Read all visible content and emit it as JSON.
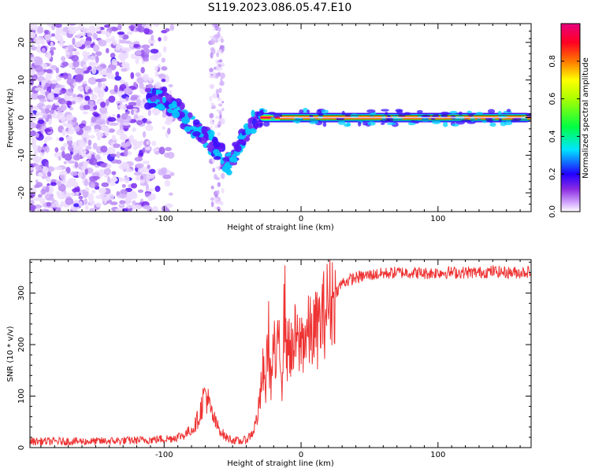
{
  "title": "S119.2023.086.05.47.E10",
  "colors": {
    "snr_line": "#ee3333",
    "band_center": "#e8e8e8",
    "band_edge": "#222222"
  },
  "chart_data": [
    {
      "type": "heatmap",
      "xlabel": "Height of straight line (km)",
      "ylabel": "Frequency (Hz)",
      "xlim": [
        -198,
        168
      ],
      "ylim": [
        -25,
        25
      ],
      "xticks": [
        -100,
        0,
        100
      ],
      "xtick_labels": [
        "-100",
        "0",
        "100"
      ],
      "yticks": [
        -20,
        -10,
        0,
        10,
        20
      ],
      "ytick_labels": [
        "-20",
        "-10",
        "0",
        "10",
        "20"
      ],
      "colorscale": "rainbow (white-purple-blue-cyan-green-yellow-red-magenta)",
      "features": {
        "noise_region_x": [
          -198,
          -100
        ],
        "descending_trace": [
          {
            "x": -100,
            "y": 5
          },
          {
            "x": -90,
            "y": 2
          },
          {
            "x": -80,
            "y": -2
          },
          {
            "x": -70,
            "y": -5
          },
          {
            "x": -60,
            "y": -9
          },
          {
            "x": -52,
            "y": -13
          },
          {
            "x": -45,
            "y": -7
          },
          {
            "x": -38,
            "y": -2
          },
          {
            "x": -30,
            "y": 0
          }
        ],
        "constant_line_from_x": -30,
        "constant_line_freq": 0
      },
      "colorbar": {
        "label": "Normalized spectral amplitude",
        "range": [
          0,
          1
        ],
        "ticks": [
          0.0,
          0.2,
          0.4,
          0.6,
          0.8
        ],
        "tick_labels": [
          "0.0",
          "0.2",
          "0.4",
          "0.6",
          "0.8"
        ]
      }
    },
    {
      "type": "line",
      "xlabel": "Height of straight line (km)",
      "ylabel": "SNR (10 * v/v)",
      "xlim": [
        -198,
        168
      ],
      "ylim": [
        0,
        365
      ],
      "xticks": [
        -100,
        0,
        100
      ],
      "xtick_labels": [
        "-100",
        "0",
        "100"
      ],
      "yticks": [
        0,
        100,
        200,
        300
      ],
      "ytick_labels": [
        "0",
        "100",
        "200",
        "300"
      ],
      "series": [
        {
          "x": [
            -198,
            -150,
            -110,
            -95,
            -85,
            -78,
            -74,
            -70,
            -66,
            -62,
            -58,
            -55,
            -50,
            -45,
            -40,
            -35,
            -32,
            -30,
            -28,
            -26,
            -24,
            -22,
            -20,
            -18,
            -16,
            -14,
            -12,
            -10,
            -8,
            -6,
            -4,
            -2,
            0,
            5,
            10,
            15,
            18,
            20,
            25,
            30,
            40,
            50,
            60,
            70,
            80,
            90,
            100,
            110,
            120,
            130,
            140,
            150,
            160,
            168
          ],
          "y": [
            12,
            12,
            15,
            18,
            25,
            40,
            65,
            110,
            70,
            45,
            30,
            20,
            15,
            12,
            15,
            30,
            60,
            90,
            150,
            110,
            230,
            120,
            200,
            140,
            240,
            130,
            280,
            180,
            210,
            170,
            220,
            190,
            210,
            220,
            225,
            245,
            270,
            280,
            300,
            320,
            330,
            335,
            338,
            340,
            340,
            338,
            340,
            340,
            340,
            340,
            342,
            340,
            340,
            342
          ]
        }
      ]
    }
  ]
}
